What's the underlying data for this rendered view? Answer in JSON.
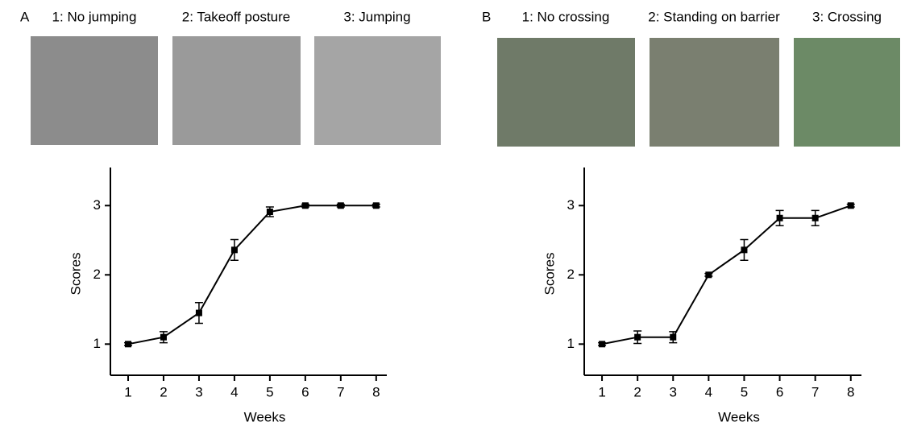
{
  "chart_data": [
    {
      "type": "line",
      "panel_label": "A",
      "photo_captions": [
        "1: No jumping",
        "2: Takeoff posture",
        "3: Jumping"
      ],
      "x_label": "Weeks",
      "y_label": "Scores",
      "x": [
        1,
        2,
        3,
        4,
        5,
        6,
        7,
        8
      ],
      "series": [
        {
          "color": "#000000",
          "values": [
            1.0,
            1.1,
            1.45,
            2.36,
            2.91,
            3.0,
            3.0,
            3.0
          ],
          "errors": [
            0.02,
            0.08,
            0.15,
            0.15,
            0.07,
            0.02,
            0.02,
            0.02
          ]
        }
      ],
      "xlim": [
        0.5,
        8.3
      ],
      "ylim": [
        0.55,
        3.55
      ],
      "xticks": [
        1,
        2,
        3,
        4,
        5,
        6,
        7,
        8
      ],
      "yticks": [
        1,
        2,
        3
      ]
    },
    {
      "type": "line",
      "panel_label": "B",
      "photo_captions": [
        "1: No crossing",
        "2: Standing on barrier",
        "3: Crossing"
      ],
      "x_label": "Weeks",
      "y_label": "Scores",
      "x": [
        1,
        2,
        3,
        4,
        5,
        6,
        7,
        8
      ],
      "series": [
        {
          "color": "#000000",
          "values": [
            1.0,
            1.1,
            1.1,
            2.0,
            2.36,
            2.82,
            2.82,
            3.0
          ],
          "errors": [
            0.02,
            0.09,
            0.08,
            0.02,
            0.15,
            0.11,
            0.11,
            0.02
          ]
        }
      ],
      "xlim": [
        0.5,
        8.3
      ],
      "ylim": [
        0.55,
        3.55
      ],
      "xticks": [
        1,
        2,
        3,
        4,
        5,
        6,
        7,
        8
      ],
      "yticks": [
        1,
        2,
        3
      ]
    }
  ]
}
